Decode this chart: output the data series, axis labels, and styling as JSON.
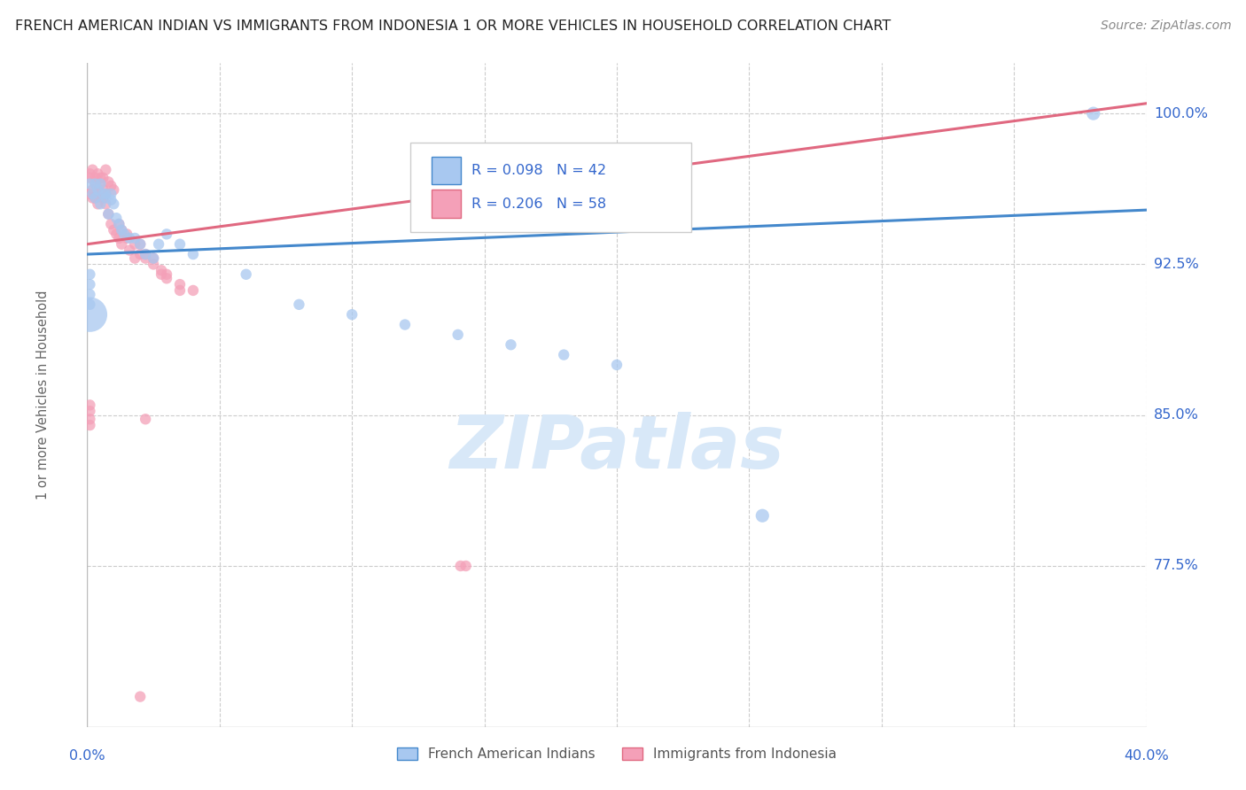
{
  "title": "FRENCH AMERICAN INDIAN VS IMMIGRANTS FROM INDONESIA 1 OR MORE VEHICLES IN HOUSEHOLD CORRELATION CHART",
  "source": "Source: ZipAtlas.com",
  "ylabel": "1 or more Vehicles in Household",
  "ytick_labels": [
    "100.0%",
    "92.5%",
    "85.0%",
    "77.5%"
  ],
  "ytick_values": [
    1.0,
    0.925,
    0.85,
    0.775
  ],
  "xmin": 0.0,
  "xmax": 0.4,
  "ymin": 0.695,
  "ymax": 1.025,
  "blue_R": 0.098,
  "blue_N": 42,
  "pink_R": 0.206,
  "pink_N": 58,
  "blue_color": "#A8C8F0",
  "pink_color": "#F4A0B8",
  "blue_line_color": "#4488CC",
  "pink_line_color": "#E06880",
  "watermark_text": "ZIPatlas",
  "blue_line_x0": 0.0,
  "blue_line_y0": 0.93,
  "blue_line_x1": 0.4,
  "blue_line_y1": 0.952,
  "pink_line_x0": 0.0,
  "pink_line_y0": 0.935,
  "pink_line_x1": 0.4,
  "pink_line_y1": 1.005,
  "blue_x": [
    0.002,
    0.003,
    0.004,
    0.005,
    0.006,
    0.007,
    0.008,
    0.009,
    0.01,
    0.011,
    0.012,
    0.013,
    0.014,
    0.016,
    0.018,
    0.02,
    0.022,
    0.025,
    0.027,
    0.03,
    0.035,
    0.04,
    0.001,
    0.003,
    0.005,
    0.007,
    0.009,
    0.06,
    0.08,
    0.1,
    0.12,
    0.14,
    0.16,
    0.18,
    0.2,
    0.38,
    0.255,
    0.001,
    0.001,
    0.001,
    0.001,
    0.001
  ],
  "blue_y": [
    0.96,
    0.958,
    0.962,
    0.955,
    0.96,
    0.958,
    0.95,
    0.957,
    0.955,
    0.948,
    0.945,
    0.942,
    0.94,
    0.938,
    0.938,
    0.935,
    0.93,
    0.928,
    0.935,
    0.94,
    0.935,
    0.93,
    0.965,
    0.965,
    0.965,
    0.96,
    0.96,
    0.92,
    0.905,
    0.9,
    0.895,
    0.89,
    0.885,
    0.88,
    0.875,
    1.0,
    0.8,
    0.92,
    0.915,
    0.91,
    0.905,
    0.9
  ],
  "blue_sizes": [
    80,
    80,
    80,
    80,
    80,
    80,
    80,
    80,
    80,
    80,
    80,
    80,
    80,
    80,
    80,
    80,
    80,
    80,
    80,
    80,
    80,
    80,
    80,
    80,
    80,
    80,
    80,
    80,
    80,
    80,
    80,
    80,
    80,
    80,
    80,
    120,
    120,
    80,
    80,
    80,
    80,
    800
  ],
  "pink_x": [
    0.001,
    0.002,
    0.002,
    0.003,
    0.003,
    0.004,
    0.004,
    0.005,
    0.005,
    0.006,
    0.006,
    0.007,
    0.007,
    0.008,
    0.009,
    0.01,
    0.011,
    0.012,
    0.013,
    0.015,
    0.016,
    0.018,
    0.02,
    0.022,
    0.025,
    0.028,
    0.03,
    0.035,
    0.04,
    0.001,
    0.001,
    0.002,
    0.003,
    0.004,
    0.005,
    0.006,
    0.007,
    0.008,
    0.009,
    0.01,
    0.012,
    0.013,
    0.015,
    0.018,
    0.02,
    0.022,
    0.025,
    0.028,
    0.03,
    0.035,
    0.001,
    0.001,
    0.001,
    0.001,
    0.141,
    0.143,
    0.022,
    0.02
  ],
  "pink_y": [
    0.96,
    0.958,
    0.962,
    0.965,
    0.958,
    0.96,
    0.955,
    0.965,
    0.96,
    0.958,
    0.962,
    0.955,
    0.96,
    0.95,
    0.945,
    0.942,
    0.94,
    0.938,
    0.935,
    0.938,
    0.932,
    0.928,
    0.935,
    0.93,
    0.928,
    0.922,
    0.92,
    0.915,
    0.912,
    0.97,
    0.968,
    0.972,
    0.968,
    0.97,
    0.968,
    0.968,
    0.972,
    0.966,
    0.964,
    0.962,
    0.945,
    0.942,
    0.94,
    0.935,
    0.93,
    0.928,
    0.925,
    0.92,
    0.918,
    0.912,
    0.855,
    0.852,
    0.848,
    0.845,
    0.775,
    0.775,
    0.848,
    0.71
  ],
  "pink_sizes": [
    80,
    80,
    80,
    80,
    80,
    80,
    80,
    80,
    80,
    80,
    80,
    80,
    80,
    80,
    80,
    80,
    80,
    80,
    80,
    80,
    80,
    80,
    80,
    80,
    80,
    80,
    80,
    80,
    80,
    80,
    80,
    80,
    80,
    80,
    80,
    80,
    80,
    80,
    80,
    80,
    80,
    80,
    80,
    80,
    80,
    80,
    80,
    80,
    80,
    80,
    80,
    80,
    80,
    80,
    80,
    80,
    80,
    80
  ]
}
